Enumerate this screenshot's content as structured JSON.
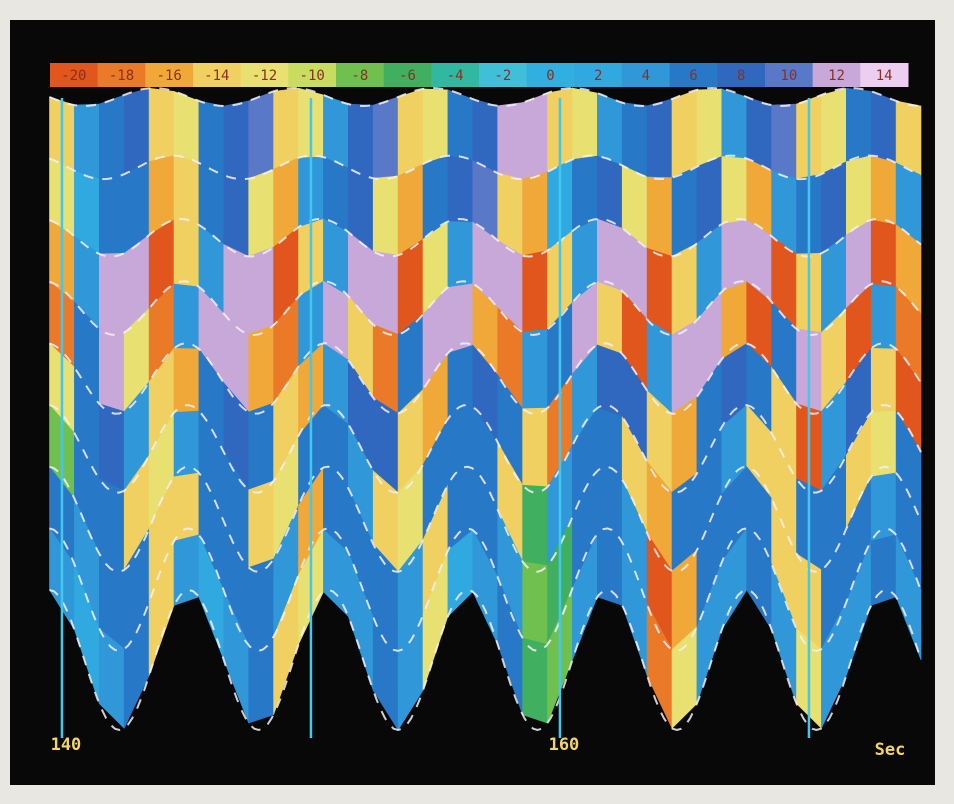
{
  "chart_data": {
    "type": "heatmap",
    "xlabel": "Sec",
    "xlim": [
      139.5,
      174.5
    ],
    "xticks": [
      140,
      160
    ],
    "gridlines": [
      140,
      150,
      160,
      170
    ],
    "x": [
      140,
      141,
      142,
      143,
      144,
      145,
      146,
      147,
      148,
      149,
      150,
      151,
      152,
      153,
      154,
      155,
      156,
      157,
      158,
      159,
      160,
      161,
      162,
      163,
      164,
      165,
      166,
      167,
      168,
      169,
      170,
      171,
      172,
      173,
      174
    ],
    "colorbar": {
      "ticks": [
        -20,
        -18,
        -16,
        -14,
        -12,
        -10,
        -8,
        -6,
        -4,
        -2,
        0,
        2,
        4,
        6,
        8,
        10,
        12,
        14
      ],
      "colors": [
        "#e0561c",
        "#ea7a28",
        "#f0a838",
        "#f0d060",
        "#e8e070",
        "#c8dc60",
        "#70c050",
        "#40b060",
        "#30b8a0",
        "#40c0d8",
        "#30b0e0",
        "#30a8e0",
        "#3098d8",
        "#2878c8",
        "#3068c0",
        "#5a78c8",
        "#c8a8d8",
        "#eccff0"
      ]
    },
    "values": [
      [
        -14,
        4,
        6,
        8,
        -14,
        -12,
        6,
        8,
        10,
        -14,
        -12,
        4,
        8,
        10,
        -14,
        -12,
        6,
        8,
        12,
        12,
        -14,
        -12,
        4,
        6,
        8,
        -14,
        -12,
        4,
        8,
        10,
        -14,
        -12,
        6,
        8,
        -14
      ],
      [
        -12,
        2,
        6,
        6,
        -16,
        -14,
        6,
        8,
        -12,
        -16,
        4,
        6,
        8,
        -12,
        -16,
        6,
        8,
        10,
        -14,
        -16,
        2,
        6,
        8,
        -12,
        -16,
        6,
        8,
        -12,
        -16,
        4,
        6,
        8,
        -12,
        -16,
        4
      ],
      [
        -16,
        4,
        12,
        12,
        -20,
        -14,
        4,
        12,
        12,
        -20,
        -14,
        4,
        12,
        12,
        -20,
        -12,
        4,
        12,
        12,
        -20,
        -14,
        4,
        12,
        12,
        -20,
        -14,
        4,
        12,
        12,
        -20,
        -14,
        4,
        12,
        -20,
        -16
      ],
      [
        -18,
        6,
        12,
        -12,
        -18,
        4,
        12,
        12,
        -16,
        -18,
        4,
        12,
        -14,
        -18,
        6,
        12,
        12,
        -16,
        -18,
        4,
        6,
        12,
        -14,
        -20,
        4,
        12,
        12,
        -16,
        -20,
        6,
        12,
        -14,
        -20,
        4,
        -18
      ],
      [
        -12,
        6,
        8,
        4,
        -14,
        -16,
        6,
        8,
        6,
        -14,
        -16,
        4,
        8,
        8,
        -14,
        -16,
        6,
        8,
        6,
        -14,
        -18,
        4,
        8,
        8,
        -14,
        -16,
        6,
        8,
        6,
        -14,
        -20,
        4,
        8,
        -14,
        -20
      ],
      [
        -8,
        6,
        6,
        -14,
        -12,
        4,
        6,
        6,
        -14,
        -12,
        6,
        6,
        4,
        -14,
        -12,
        6,
        6,
        6,
        -14,
        -6,
        4,
        6,
        6,
        -14,
        -16,
        6,
        6,
        4,
        -14,
        -14,
        6,
        6,
        -14,
        -12,
        6
      ],
      [
        6,
        4,
        6,
        6,
        -14,
        -14,
        6,
        6,
        6,
        4,
        -16,
        6,
        6,
        6,
        4,
        -14,
        6,
        6,
        4,
        -8,
        -6,
        6,
        6,
        4,
        -20,
        -16,
        6,
        6,
        6,
        -14,
        -14,
        6,
        6,
        4,
        6
      ],
      [
        4,
        2,
        4,
        6,
        -14,
        4,
        2,
        4,
        6,
        -14,
        -12,
        4,
        4,
        6,
        4,
        -12,
        2,
        4,
        6,
        -6,
        -8,
        4,
        6,
        4,
        -18,
        -12,
        4,
        4,
        6,
        4,
        -12,
        4,
        4,
        6,
        4
      ]
    ]
  }
}
